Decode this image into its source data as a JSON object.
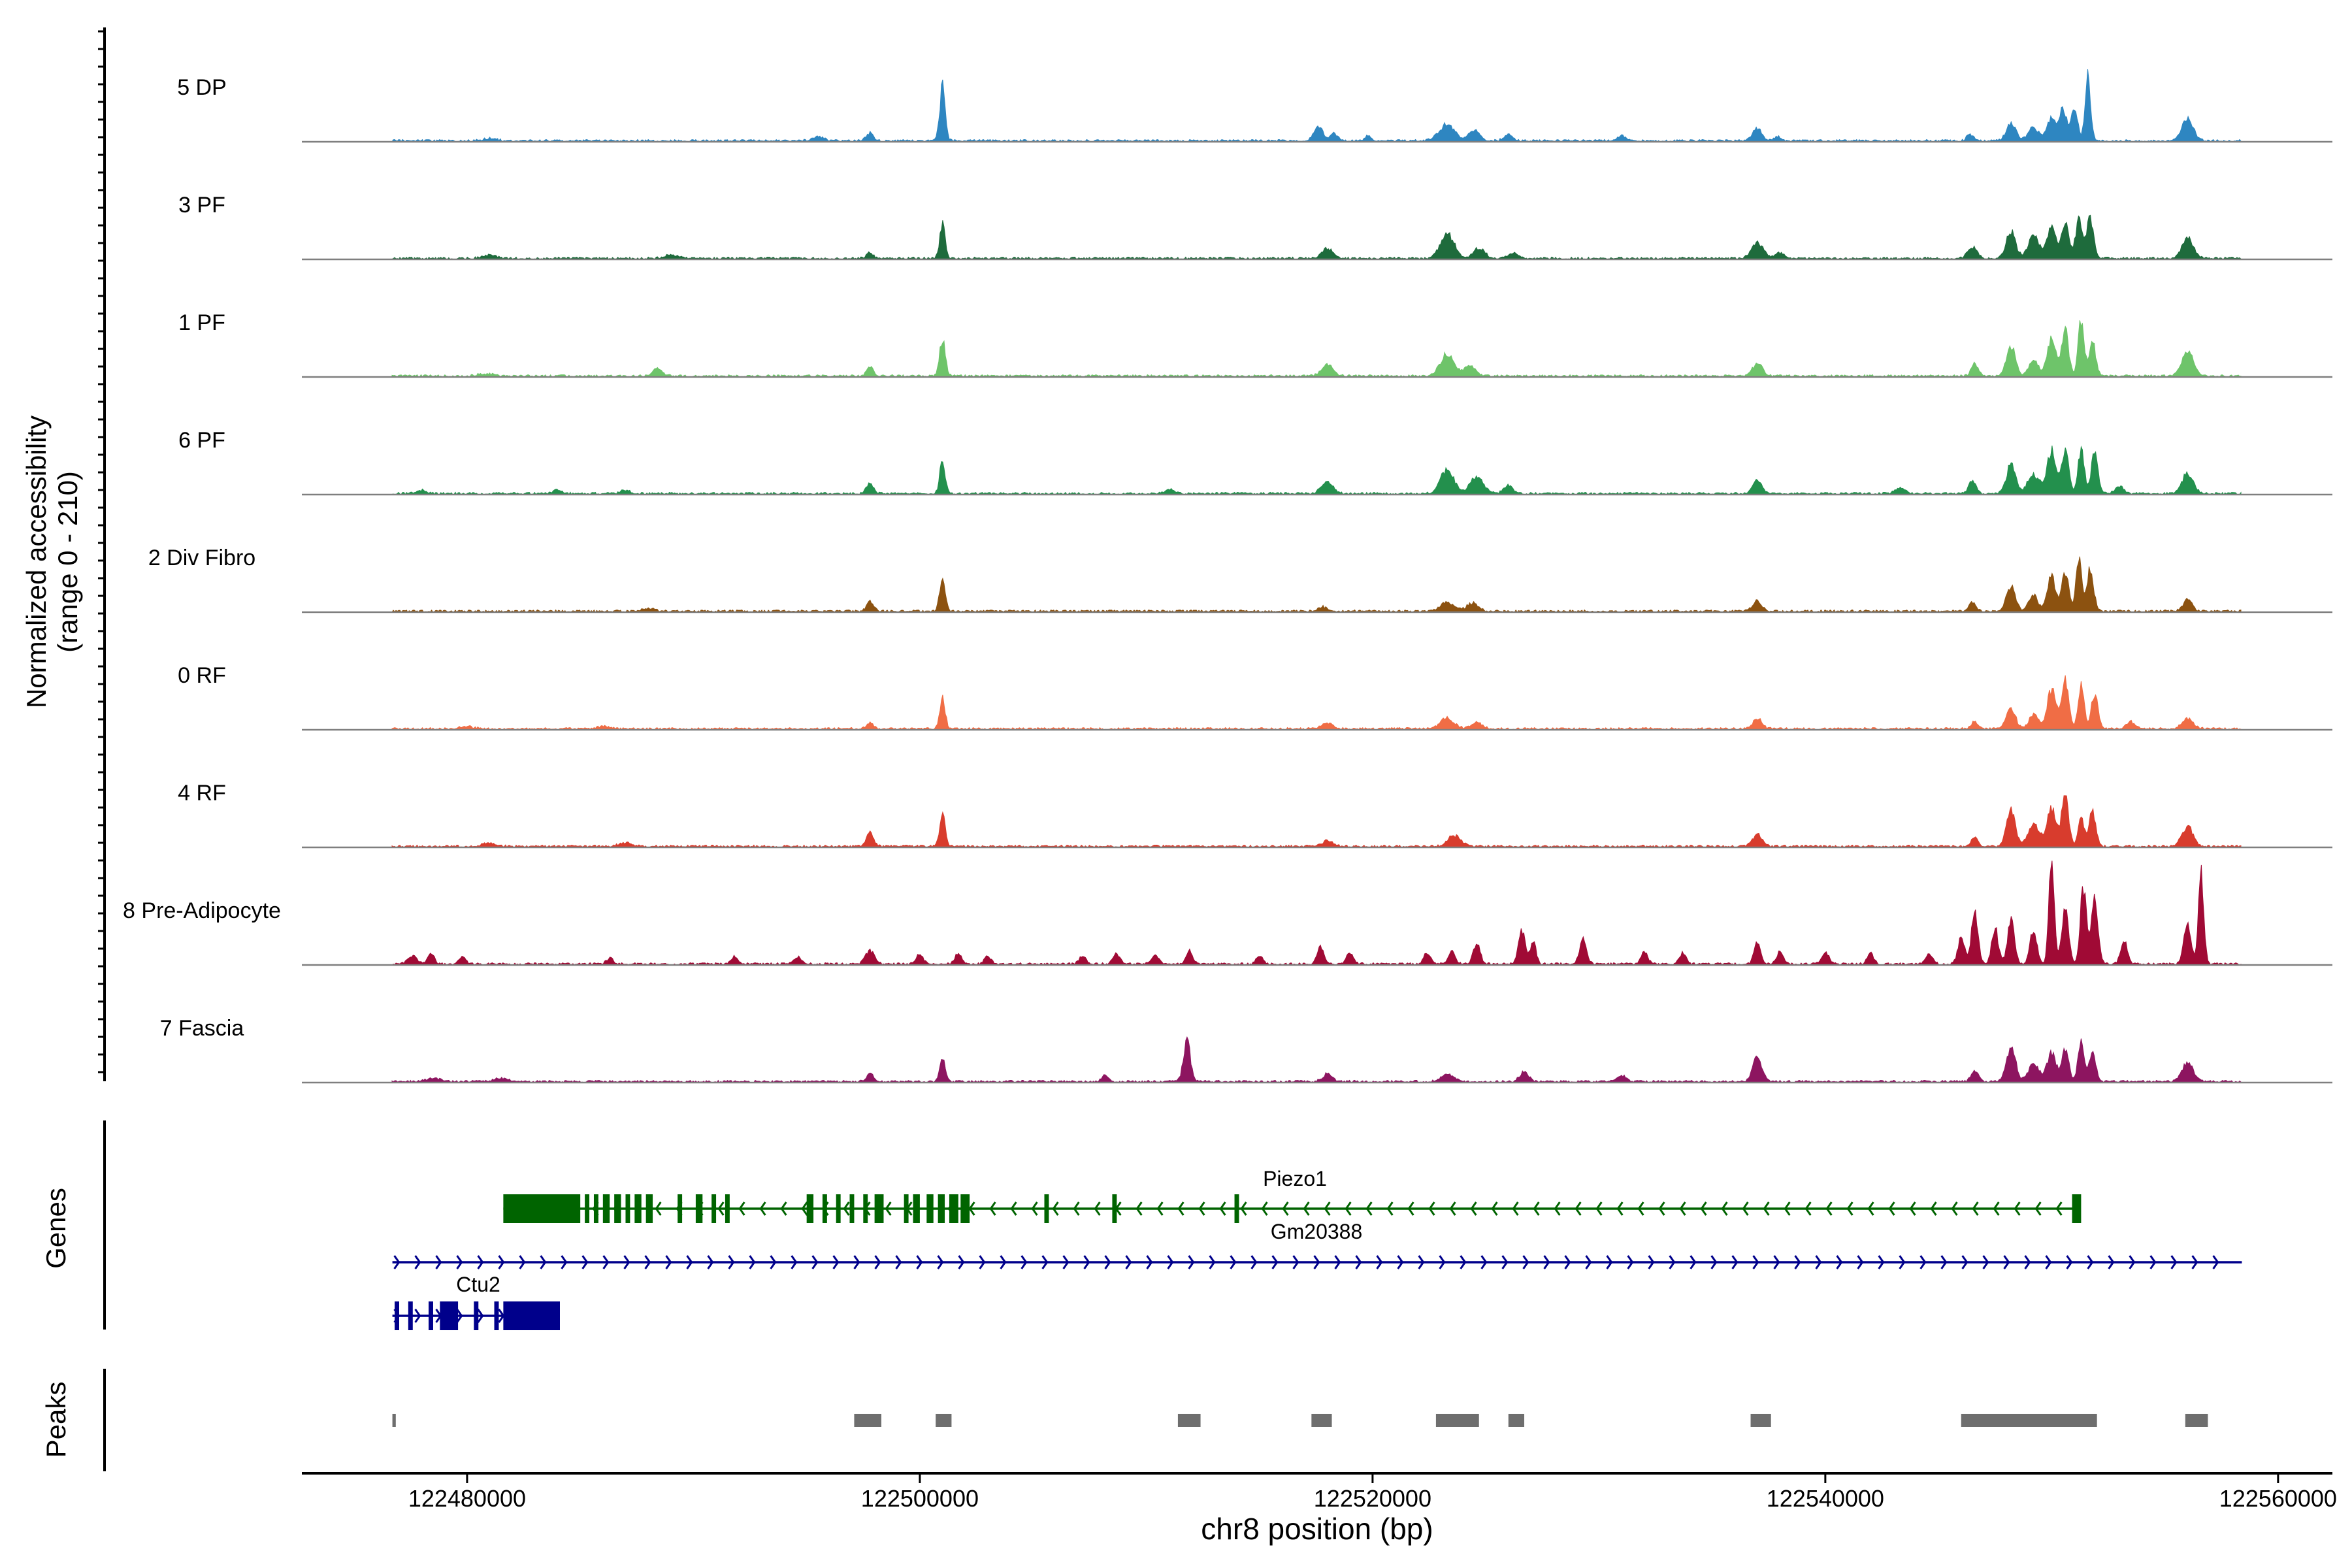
{
  "chart_data": {
    "type": "area",
    "title": "",
    "ylabel": "Normalized accessibility",
    "ylabel_range": "(range 0 - 210)",
    "xlabel": "chr8 position (bp)",
    "xlim": [
      122472700,
      122562400
    ],
    "ylim": [
      0,
      210
    ],
    "xticks": [
      122480000,
      122500000,
      122520000,
      122540000,
      122560000
    ],
    "tracks": [
      {
        "name": "5 DP",
        "color": "#2e86c1",
        "peaks": [
          [
            122481000,
            4,
            300
          ],
          [
            122495500,
            8,
            250
          ],
          [
            122497800,
            14,
            150
          ],
          [
            122501000,
            95,
            120
          ],
          [
            122517600,
            24,
            200
          ],
          [
            122518300,
            14,
            150
          ],
          [
            122519800,
            10,
            150
          ],
          [
            122523300,
            28,
            350
          ],
          [
            122524500,
            18,
            250
          ],
          [
            122526000,
            10,
            200
          ],
          [
            122531000,
            8,
            200
          ],
          [
            122537000,
            22,
            200
          ],
          [
            122537900,
            8,
            150
          ],
          [
            122546400,
            12,
            150
          ],
          [
            122548200,
            32,
            200
          ],
          [
            122549200,
            22,
            250
          ],
          [
            122550000,
            40,
            200
          ],
          [
            122550500,
            56,
            150
          ],
          [
            122551000,
            60,
            150
          ],
          [
            122551600,
            110,
            120
          ],
          [
            122556000,
            38,
            250
          ]
        ]
      },
      {
        "name": "3 PF",
        "color": "#1e6b3c",
        "peaks": [
          [
            122481000,
            6,
            300
          ],
          [
            122489000,
            6,
            300
          ],
          [
            122497800,
            10,
            150
          ],
          [
            122501000,
            60,
            120
          ],
          [
            122518000,
            18,
            250
          ],
          [
            122523300,
            42,
            300
          ],
          [
            122524700,
            18,
            250
          ],
          [
            122526200,
            10,
            200
          ],
          [
            122537000,
            28,
            250
          ],
          [
            122538000,
            10,
            200
          ],
          [
            122546500,
            20,
            200
          ],
          [
            122548200,
            48,
            200
          ],
          [
            122549200,
            40,
            250
          ],
          [
            122550000,
            52,
            200
          ],
          [
            122550600,
            66,
            150
          ],
          [
            122551200,
            68,
            150
          ],
          [
            122551700,
            70,
            150
          ],
          [
            122556000,
            36,
            250
          ]
        ]
      },
      {
        "name": "1 PF",
        "color": "#6ec46a",
        "peaks": [
          [
            122480800,
            4,
            300
          ],
          [
            122488400,
            14,
            200
          ],
          [
            122497800,
            16,
            150
          ],
          [
            122501000,
            62,
            130
          ],
          [
            122518000,
            20,
            250
          ],
          [
            122523300,
            38,
            300
          ],
          [
            122524300,
            18,
            250
          ],
          [
            122537000,
            24,
            200
          ],
          [
            122546600,
            22,
            150
          ],
          [
            122548200,
            52,
            200
          ],
          [
            122549200,
            28,
            200
          ],
          [
            122550000,
            66,
            200
          ],
          [
            122550600,
            78,
            150
          ],
          [
            122551300,
            96,
            130
          ],
          [
            122551800,
            60,
            150
          ],
          [
            122556000,
            46,
            250
          ]
        ]
      },
      {
        "name": "6 PF",
        "color": "#23904d",
        "peaks": [
          [
            122478000,
            6,
            200
          ],
          [
            122484000,
            6,
            200
          ],
          [
            122487000,
            6,
            200
          ],
          [
            122497800,
            18,
            150
          ],
          [
            122501000,
            56,
            120
          ],
          [
            122511000,
            8,
            200
          ],
          [
            122518000,
            20,
            250
          ],
          [
            122523300,
            42,
            300
          ],
          [
            122524600,
            28,
            300
          ],
          [
            122526000,
            16,
            200
          ],
          [
            122537000,
            22,
            200
          ],
          [
            122543300,
            10,
            200
          ],
          [
            122546500,
            24,
            150
          ],
          [
            122548200,
            52,
            200
          ],
          [
            122549200,
            34,
            250
          ],
          [
            122550000,
            76,
            200
          ],
          [
            122550600,
            76,
            150
          ],
          [
            122551300,
            80,
            130
          ],
          [
            122551900,
            70,
            150
          ],
          [
            122553000,
            12,
            200
          ],
          [
            122556000,
            36,
            250
          ]
        ]
      },
      {
        "name": "2 Div Fibro",
        "color": "#8c5210",
        "peaks": [
          [
            122488000,
            4,
            300
          ],
          [
            122497800,
            18,
            150
          ],
          [
            122501000,
            55,
            120
          ],
          [
            122517800,
            8,
            200
          ],
          [
            122523300,
            16,
            300
          ],
          [
            122524400,
            14,
            250
          ],
          [
            122537000,
            18,
            200
          ],
          [
            122546500,
            16,
            150
          ],
          [
            122548200,
            42,
            200
          ],
          [
            122549200,
            28,
            200
          ],
          [
            122550000,
            60,
            180
          ],
          [
            122550600,
            70,
            150
          ],
          [
            122551200,
            90,
            130
          ],
          [
            122551700,
            74,
            150
          ],
          [
            122556000,
            20,
            200
          ]
        ]
      },
      {
        "name": "0 RF",
        "color": "#f06d45",
        "peaks": [
          [
            122480000,
            4,
            300
          ],
          [
            122486000,
            4,
            300
          ],
          [
            122497800,
            10,
            150
          ],
          [
            122501000,
            54,
            120
          ],
          [
            122518000,
            10,
            250
          ],
          [
            122523300,
            18,
            300
          ],
          [
            122524600,
            10,
            250
          ],
          [
            122537000,
            18,
            200
          ],
          [
            122546600,
            12,
            150
          ],
          [
            122548200,
            36,
            200
          ],
          [
            122549200,
            26,
            200
          ],
          [
            122550000,
            68,
            200
          ],
          [
            122550600,
            86,
            150
          ],
          [
            122551300,
            74,
            130
          ],
          [
            122551900,
            62,
            150
          ],
          [
            122553500,
            12,
            200
          ],
          [
            122556000,
            18,
            250
          ]
        ]
      },
      {
        "name": "4 RF",
        "color": "#d83c2d",
        "peaks": [
          [
            122481000,
            6,
            300
          ],
          [
            122487000,
            6,
            300
          ],
          [
            122497800,
            26,
            150
          ],
          [
            122501000,
            62,
            120
          ],
          [
            122518000,
            10,
            250
          ],
          [
            122523600,
            18,
            300
          ],
          [
            122537000,
            22,
            200
          ],
          [
            122546600,
            16,
            150
          ],
          [
            122548200,
            62,
            200
          ],
          [
            122549200,
            40,
            250
          ],
          [
            122550000,
            68,
            200
          ],
          [
            122550600,
            92,
            150
          ],
          [
            122551300,
            54,
            130
          ],
          [
            122551800,
            60,
            150
          ],
          [
            122556000,
            34,
            250
          ]
        ]
      },
      {
        "name": "8 Pre-Adipocyte",
        "color": "#a00a35",
        "peaks": [
          [
            122477600,
            14,
            200
          ],
          [
            122478400,
            18,
            150
          ],
          [
            122479800,
            12,
            150
          ],
          [
            122486300,
            10,
            150
          ],
          [
            122491800,
            12,
            150
          ],
          [
            122494600,
            12,
            150
          ],
          [
            122497800,
            24,
            200
          ],
          [
            122500000,
            16,
            150
          ],
          [
            122501700,
            18,
            150
          ],
          [
            122503000,
            14,
            150
          ],
          [
            122507200,
            14,
            150
          ],
          [
            122508700,
            18,
            150
          ],
          [
            122510400,
            16,
            150
          ],
          [
            122511900,
            22,
            150
          ],
          [
            122515000,
            14,
            150
          ],
          [
            122517700,
            30,
            150
          ],
          [
            122519000,
            20,
            150
          ],
          [
            122522400,
            18,
            150
          ],
          [
            122523500,
            22,
            150
          ],
          [
            122524600,
            36,
            150
          ],
          [
            122526600,
            62,
            150
          ],
          [
            122527100,
            38,
            120
          ],
          [
            122529300,
            46,
            150
          ],
          [
            122532000,
            20,
            150
          ],
          [
            122533700,
            18,
            150
          ],
          [
            122537000,
            36,
            150
          ],
          [
            122538000,
            22,
            150
          ],
          [
            122540000,
            20,
            150
          ],
          [
            122542000,
            18,
            150
          ],
          [
            122544600,
            18,
            150
          ],
          [
            122546000,
            44,
            150
          ],
          [
            122546600,
            90,
            150
          ],
          [
            122547500,
            60,
            150
          ],
          [
            122548200,
            78,
            150
          ],
          [
            122549200,
            60,
            150
          ],
          [
            122550000,
            185,
            120
          ],
          [
            122550600,
            100,
            150
          ],
          [
            122551400,
            136,
            130
          ],
          [
            122551900,
            110,
            150
          ],
          [
            122553200,
            40,
            150
          ],
          [
            122556000,
            76,
            150
          ],
          [
            122556600,
            160,
            120
          ]
        ]
      },
      {
        "name": "7 Fascia",
        "color": "#8d1560",
        "peaks": [
          [
            122478500,
            6,
            300
          ],
          [
            122481500,
            6,
            300
          ],
          [
            122497800,
            14,
            150
          ],
          [
            122501000,
            40,
            120
          ],
          [
            122508200,
            12,
            150
          ],
          [
            122511800,
            72,
            150
          ],
          [
            122518000,
            14,
            200
          ],
          [
            122523300,
            12,
            300
          ],
          [
            122526700,
            16,
            200
          ],
          [
            122531000,
            10,
            200
          ],
          [
            122537000,
            42,
            200
          ],
          [
            122546600,
            20,
            150
          ],
          [
            122548200,
            60,
            200
          ],
          [
            122549200,
            30,
            250
          ],
          [
            122550000,
            50,
            200
          ],
          [
            122550600,
            56,
            150
          ],
          [
            122551300,
            72,
            130
          ],
          [
            122551800,
            50,
            150
          ],
          [
            122556000,
            32,
            250
          ]
        ]
      }
    ],
    "genes": [
      {
        "name": "Piezo1",
        "strand": "-",
        "color": "#006400",
        "start": 122481600,
        "end": 122551200,
        "exons": [
          [
            122481600,
            122485000
          ],
          [
            122485200,
            122485400
          ],
          [
            122485600,
            122485800
          ],
          [
            122486000,
            122486300
          ],
          [
            122486500,
            122486800
          ],
          [
            122487000,
            122487200
          ],
          [
            122487400,
            122487700
          ],
          [
            122487900,
            122488200
          ],
          [
            122489300,
            122489500
          ],
          [
            122490100,
            122490400
          ],
          [
            122490800,
            122491000
          ],
          [
            122491400,
            122491600
          ],
          [
            122495000,
            122495300
          ],
          [
            122495700,
            122495900
          ],
          [
            122496300,
            122496500
          ],
          [
            122496900,
            122497100
          ],
          [
            122497500,
            122497700
          ],
          [
            122498000,
            122498400
          ],
          [
            122499300,
            122499500
          ],
          [
            122499700,
            122500000
          ],
          [
            122500300,
            122500600
          ],
          [
            122500800,
            122501100
          ],
          [
            122501300,
            122501700
          ],
          [
            122501800,
            122502200
          ],
          [
            122505500,
            122505700
          ],
          [
            122508500,
            122508700
          ],
          [
            122513900,
            122514100
          ],
          [
            122550900,
            122551300
          ]
        ]
      },
      {
        "name": "Gm20388",
        "strand": "+",
        "color": "#00008b",
        "start": 122476700,
        "end": 122558400,
        "exons": []
      },
      {
        "name": "Ctu2",
        "strand": "+",
        "color": "#00008b",
        "start": 122476700,
        "end": 122484100,
        "exons": [
          [
            122476800,
            122477000
          ],
          [
            122477400,
            122477600
          ],
          [
            122478300,
            122478500
          ],
          [
            122478800,
            122479600
          ],
          [
            122480300,
            122480500
          ],
          [
            122481200,
            122481400
          ],
          [
            122481600,
            122484100
          ]
        ]
      }
    ],
    "peaks": [
      [
        122476700,
        122476850
      ],
      [
        122497100,
        122498300
      ],
      [
        122500700,
        122501400
      ],
      [
        122511400,
        122512400
      ],
      [
        122517300,
        122518200
      ],
      [
        122522800,
        122524700
      ],
      [
        122526000,
        122526700
      ],
      [
        122536700,
        122537600
      ],
      [
        122546000,
        122552000
      ],
      [
        122555900,
        122556900
      ]
    ],
    "panel_labels": {
      "genes": "Genes",
      "peaks": "Peaks"
    }
  }
}
